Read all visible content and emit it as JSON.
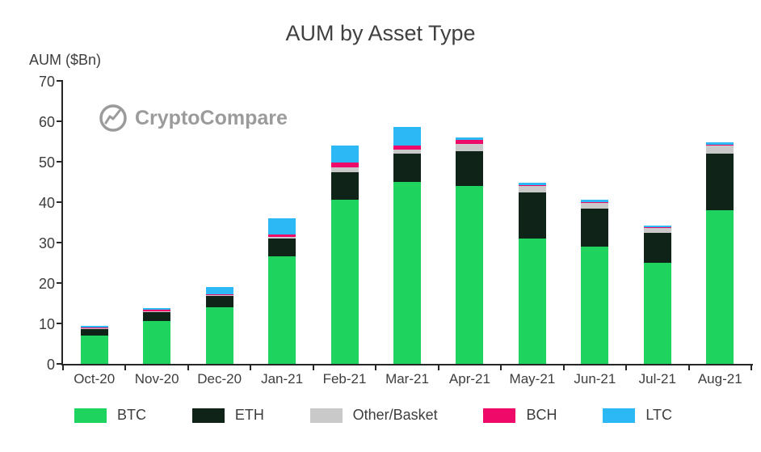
{
  "chart": {
    "title": "AUM by Asset Type",
    "ylabel": "AUM ($Bn)",
    "watermark": "CryptoCompare"
  },
  "colors": {
    "axis": "#262626",
    "text": "#3d3d3d",
    "watermark_gray": "#9b9b9b"
  },
  "chart_data": {
    "type": "bar",
    "stacked": true,
    "title": "AUM by Asset Type",
    "xlabel": "",
    "ylabel": "AUM ($Bn)",
    "ylim": [
      0,
      70
    ],
    "ytick_step": 10,
    "grid": false,
    "legend_position": "bottom",
    "categories": [
      "Oct-20",
      "Nov-20",
      "Dec-20",
      "Jan-21",
      "Feb-21",
      "Mar-21",
      "Apr-21",
      "May-21",
      "Jun-21",
      "Jul-21",
      "Aug-21"
    ],
    "series": [
      {
        "name": "BTC",
        "color": "#1fd35f",
        "values": [
          7.0,
          10.6,
          14.0,
          26.6,
          40.6,
          45.0,
          44.0,
          31.0,
          29.0,
          25.0,
          38.0
        ]
      },
      {
        "name": "ETH",
        "color": "#0f2318",
        "values": [
          1.6,
          2.2,
          2.8,
          4.4,
          6.8,
          7.0,
          8.6,
          11.4,
          9.4,
          7.4,
          14.0
        ]
      },
      {
        "name": "Other/Basket",
        "color": "#c9c9c9",
        "values": [
          0.3,
          0.3,
          0.3,
          0.5,
          1.2,
          1.0,
          1.8,
          1.6,
          1.4,
          1.2,
          2.0
        ]
      },
      {
        "name": "BCH",
        "color": "#ef0a6a",
        "values": [
          0.2,
          0.3,
          0.2,
          0.5,
          1.2,
          1.0,
          1.0,
          0.3,
          0.2,
          0.3,
          0.3
        ]
      },
      {
        "name": "LTC",
        "color": "#2bb8f4",
        "values": [
          0.4,
          0.4,
          1.7,
          4.0,
          4.2,
          4.6,
          0.6,
          0.5,
          0.6,
          0.4,
          0.5
        ]
      }
    ]
  }
}
